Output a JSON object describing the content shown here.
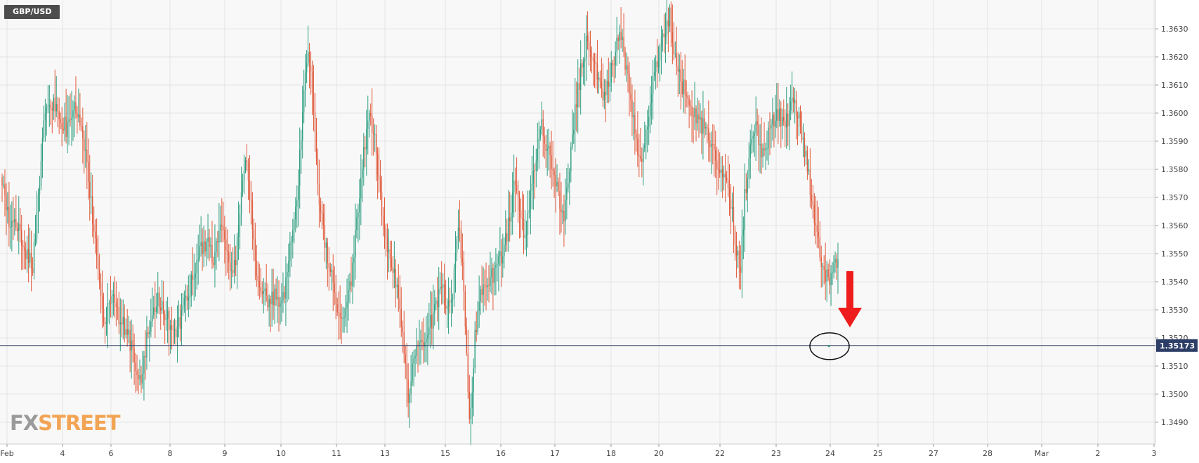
{
  "chart_data": {
    "type": "candlestick",
    "title": "GBP/USD",
    "ylim": [
      1.3484,
      1.3642
    ],
    "grid": true,
    "y_ticks": [
      "1.3490",
      "1.3500",
      "1.3510",
      "1.3520",
      "1.3530",
      "1.3540",
      "1.3550",
      "1.3560",
      "1.3570",
      "1.3580",
      "1.3590",
      "1.3600",
      "1.3610",
      "1.3620",
      "1.3630"
    ],
    "x_ticks": [
      "Feb",
      "4",
      "6",
      "8",
      "9",
      "10",
      "11",
      "13",
      "15",
      "16",
      "17",
      "18",
      "20",
      "22",
      "23",
      "24",
      "25",
      "27",
      "28",
      "Mar",
      "2",
      "3"
    ],
    "current_price": "1.35173",
    "current_price_value": 1.35173,
    "colors": {
      "up": "#2e9e80",
      "down": "#e05a3c",
      "price_line": "#2c3e66",
      "price_label_bg": "#2c3e66",
      "annotation_arrow": "#ee1c1c",
      "annotation_circle": "#111111",
      "grid": "#e3e3e3",
      "plot_bg": "#f8f8f8",
      "axis_text": "#444444"
    },
    "annotation": {
      "type": "down-arrow-and-circle",
      "target_price": 1.35173
    },
    "series": [
      {
        "waypoints": [
          [
            0,
            1.3575
          ],
          [
            6,
            1.356
          ],
          [
            12,
            1.3558
          ],
          [
            18,
            1.355
          ],
          [
            22,
            1.3545
          ],
          [
            26,
            1.357
          ],
          [
            30,
            1.36
          ],
          [
            35,
            1.3605
          ],
          [
            40,
            1.36
          ],
          [
            46,
            1.3595
          ],
          [
            52,
            1.3605
          ],
          [
            58,
            1.3592
          ],
          [
            62,
            1.3575
          ],
          [
            66,
            1.356
          ],
          [
            70,
            1.354
          ],
          [
            74,
            1.3525
          ],
          [
            78,
            1.3535
          ],
          [
            82,
            1.353
          ],
          [
            86,
            1.3525
          ],
          [
            90,
            1.3522
          ],
          [
            96,
            1.351
          ],
          [
            100,
            1.3505
          ],
          [
            104,
            1.352
          ],
          [
            108,
            1.3525
          ],
          [
            112,
            1.3535
          ],
          [
            118,
            1.3528
          ],
          [
            124,
            1.352
          ],
          [
            130,
            1.353
          ],
          [
            136,
            1.354
          ],
          [
            142,
            1.355
          ],
          [
            148,
            1.3555
          ],
          [
            152,
            1.3548
          ],
          [
            156,
            1.356
          ],
          [
            160,
            1.3555
          ],
          [
            164,
            1.3545
          ],
          [
            168,
            1.3548
          ],
          [
            172,
            1.357
          ],
          [
            176,
            1.3585
          ],
          [
            180,
            1.356
          ],
          [
            184,
            1.354
          ],
          [
            188,
            1.3538
          ],
          [
            192,
            1.3532
          ],
          [
            196,
            1.3535
          ],
          [
            200,
            1.353
          ],
          [
            204,
            1.354
          ],
          [
            208,
            1.3555
          ],
          [
            212,
            1.357
          ],
          [
            216,
            1.36
          ],
          [
            220,
            1.3625
          ],
          [
            224,
            1.36
          ],
          [
            228,
            1.357
          ],
          [
            232,
            1.3555
          ],
          [
            236,
            1.3545
          ],
          [
            240,
            1.3535
          ],
          [
            244,
            1.3525
          ],
          [
            248,
            1.353
          ],
          [
            252,
            1.3545
          ],
          [
            256,
            1.3565
          ],
          [
            260,
            1.3585
          ],
          [
            264,
            1.36
          ],
          [
            268,
            1.359
          ],
          [
            272,
            1.357
          ],
          [
            276,
            1.3555
          ],
          [
            280,
            1.3545
          ],
          [
            284,
            1.354
          ],
          [
            288,
            1.352
          ],
          [
            292,
            1.35
          ],
          [
            296,
            1.351
          ],
          [
            300,
            1.352
          ],
          [
            304,
            1.3515
          ],
          [
            308,
            1.3525
          ],
          [
            312,
            1.3532
          ],
          [
            316,
            1.354
          ],
          [
            320,
            1.353
          ],
          [
            324,
            1.3535
          ],
          [
            328,
            1.356
          ],
          [
            332,
            1.354
          ],
          [
            336,
            1.3488
          ],
          [
            340,
            1.352
          ],
          [
            344,
            1.3535
          ],
          [
            348,
            1.354
          ],
          [
            352,
            1.3542
          ],
          [
            356,
            1.3545
          ],
          [
            360,
            1.355
          ],
          [
            364,
            1.356
          ],
          [
            368,
            1.3575
          ],
          [
            372,
            1.3565
          ],
          [
            376,
            1.3555
          ],
          [
            380,
            1.357
          ],
          [
            384,
            1.3585
          ],
          [
            388,
            1.3595
          ],
          [
            392,
            1.3588
          ],
          [
            396,
            1.358
          ],
          [
            400,
            1.357
          ],
          [
            404,
            1.3565
          ],
          [
            408,
            1.358
          ],
          [
            412,
            1.36
          ],
          [
            416,
            1.3615
          ],
          [
            420,
            1.3625
          ],
          [
            424,
            1.362
          ],
          [
            428,
            1.3612
          ],
          [
            432,
            1.3608
          ],
          [
            436,
            1.361
          ],
          [
            440,
            1.362
          ],
          [
            444,
            1.3632
          ],
          [
            448,
            1.3618
          ],
          [
            452,
            1.3605
          ],
          [
            456,
            1.359
          ],
          [
            460,
            1.3582
          ],
          [
            464,
            1.3595
          ],
          [
            468,
            1.361
          ],
          [
            472,
            1.362
          ],
          [
            476,
            1.363
          ],
          [
            480,
            1.3635
          ],
          [
            484,
            1.362
          ],
          [
            488,
            1.3612
          ],
          [
            492,
            1.3605
          ],
          [
            496,
            1.36
          ],
          [
            500,
            1.3598
          ],
          [
            504,
            1.3595
          ],
          [
            508,
            1.359
          ],
          [
            512,
            1.3585
          ],
          [
            516,
            1.358
          ],
          [
            520,
            1.3578
          ],
          [
            524,
            1.3568
          ],
          [
            528,
            1.355
          ],
          [
            531,
            1.3545
          ],
          [
            534,
            1.357
          ],
          [
            538,
            1.359
          ],
          [
            542,
            1.3595
          ],
          [
            546,
            1.3585
          ],
          [
            550,
            1.359
          ],
          [
            554,
            1.3598
          ],
          [
            558,
            1.36
          ],
          [
            562,
            1.3595
          ],
          [
            566,
            1.36
          ],
          [
            570,
            1.3605
          ],
          [
            574,
            1.3595
          ],
          [
            578,
            1.3585
          ],
          [
            582,
            1.357
          ],
          [
            586,
            1.3555
          ],
          [
            590,
            1.3545
          ],
          [
            594,
            1.354
          ],
          [
            598,
            1.3545
          ],
          [
            601,
            1.3548
          ]
        ]
      }
    ]
  }
}
